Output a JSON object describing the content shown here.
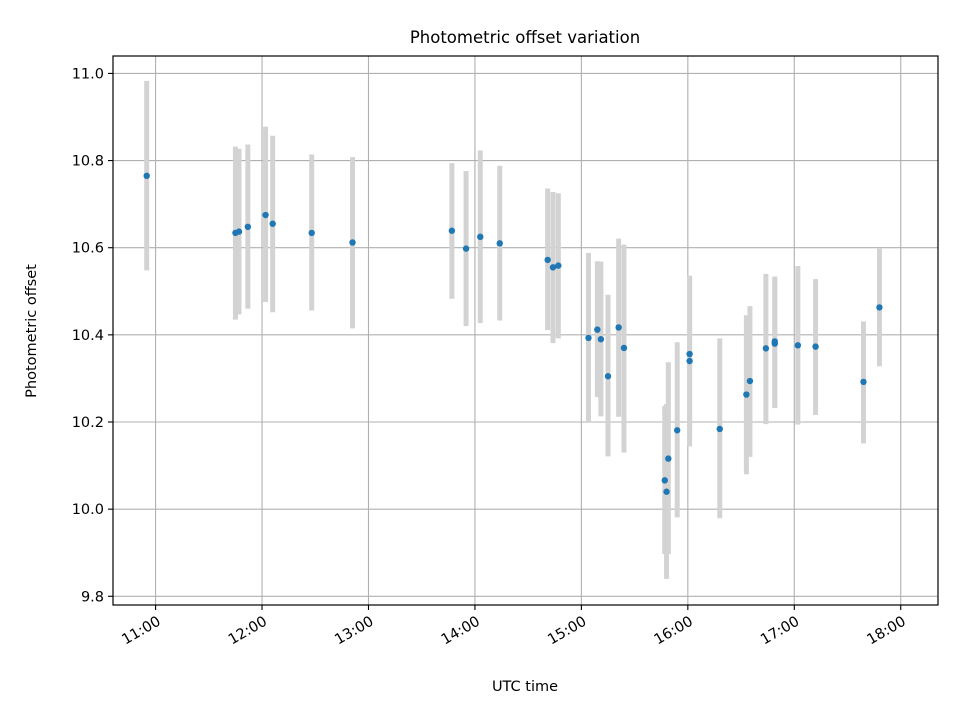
{
  "chart_data": {
    "type": "scatter",
    "title": "Photometric offset variation",
    "xlabel": "UTC time",
    "ylabel": "Photometric offset",
    "x_ticks": [
      "11:00",
      "12:00",
      "13:00",
      "14:00",
      "15:00",
      "16:00",
      "17:00",
      "18:00"
    ],
    "y_ticks": [
      "9.8",
      "10.0",
      "10.2",
      "10.4",
      "10.6",
      "10.8",
      "11.0"
    ],
    "xlim": [
      "10:36",
      "18:21"
    ],
    "ylim": [
      9.78,
      11.04
    ],
    "grid": true,
    "marker_color": "#1f77b4",
    "errorbar_color": "#d3d3d3",
    "series": [
      {
        "points": [
          {
            "x": "10:55",
            "y": 10.765,
            "err_low": 10.548,
            "err_high": 10.983
          },
          {
            "x": "11:45",
            "y": 10.634,
            "err_low": 10.435,
            "err_high": 10.832
          },
          {
            "x": "11:47",
            "y": 10.637,
            "err_low": 10.447,
            "err_high": 10.827
          },
          {
            "x": "11:52",
            "y": 10.648,
            "err_low": 10.46,
            "err_high": 10.837
          },
          {
            "x": "12:02",
            "y": 10.675,
            "err_low": 10.475,
            "err_high": 10.878
          },
          {
            "x": "12:06",
            "y": 10.655,
            "err_low": 10.452,
            "err_high": 10.857
          },
          {
            "x": "12:28",
            "y": 10.634,
            "err_low": 10.456,
            "err_high": 10.814
          },
          {
            "x": "12:51",
            "y": 10.612,
            "err_low": 10.415,
            "err_high": 10.808
          },
          {
            "x": "13:47",
            "y": 10.639,
            "err_low": 10.483,
            "err_high": 10.794
          },
          {
            "x": "13:55",
            "y": 10.598,
            "err_low": 10.42,
            "err_high": 10.776
          },
          {
            "x": "14:03",
            "y": 10.625,
            "err_low": 10.427,
            "err_high": 10.823
          },
          {
            "x": "14:14",
            "y": 10.61,
            "err_low": 10.433,
            "err_high": 10.788
          },
          {
            "x": "14:41",
            "y": 10.572,
            "err_low": 10.411,
            "err_high": 10.736
          },
          {
            "x": "14:44",
            "y": 10.555,
            "err_low": 10.381,
            "err_high": 10.728
          },
          {
            "x": "14:47",
            "y": 10.559,
            "err_low": 10.392,
            "err_high": 10.725
          },
          {
            "x": "15:04",
            "y": 10.393,
            "err_low": 10.202,
            "err_high": 10.588
          },
          {
            "x": "15:09",
            "y": 10.412,
            "err_low": 10.257,
            "err_high": 10.569
          },
          {
            "x": "15:11",
            "y": 10.39,
            "err_low": 10.213,
            "err_high": 10.568
          },
          {
            "x": "15:15",
            "y": 10.305,
            "err_low": 10.121,
            "err_high": 10.492
          },
          {
            "x": "15:21",
            "y": 10.417,
            "err_low": 10.212,
            "err_high": 10.621
          },
          {
            "x": "15:24",
            "y": 10.37,
            "err_low": 10.13,
            "err_high": 10.607
          },
          {
            "x": "15:47",
            "y": 10.066,
            "err_low": 9.897,
            "err_high": 10.237
          },
          {
            "x": "15:48",
            "y": 10.04,
            "err_low": 9.84,
            "err_high": 10.241
          },
          {
            "x": "15:49",
            "y": 10.116,
            "err_low": 9.897,
            "err_high": 10.337
          },
          {
            "x": "15:54",
            "y": 10.181,
            "err_low": 9.981,
            "err_high": 10.383
          },
          {
            "x": "16:01",
            "y": 10.356,
            "err_low": 10.176,
            "err_high": 10.536
          },
          {
            "x": "16:01",
            "y": 10.34,
            "err_low": 10.144,
            "err_high": 10.533
          },
          {
            "x": "16:18",
            "y": 10.184,
            "err_low": 9.979,
            "err_high": 10.392
          },
          {
            "x": "16:33",
            "y": 10.263,
            "err_low": 10.08,
            "err_high": 10.445
          },
          {
            "x": "16:35",
            "y": 10.294,
            "err_low": 10.12,
            "err_high": 10.466
          },
          {
            "x": "16:44",
            "y": 10.369,
            "err_low": 10.195,
            "err_high": 10.54
          },
          {
            "x": "16:49",
            "y": 10.385,
            "err_low": 10.232,
            "err_high": 10.534
          },
          {
            "x": "16:49",
            "y": 10.38,
            "err_low": 10.235,
            "err_high": 10.527
          },
          {
            "x": "17:02",
            "y": 10.376,
            "err_low": 10.194,
            "err_high": 10.558
          },
          {
            "x": "17:12",
            "y": 10.373,
            "err_low": 10.216,
            "err_high": 10.528
          },
          {
            "x": "17:39",
            "y": 10.292,
            "err_low": 10.151,
            "err_high": 10.431
          },
          {
            "x": "17:48",
            "y": 10.463,
            "err_low": 10.328,
            "err_high": 10.598
          }
        ]
      }
    ]
  }
}
